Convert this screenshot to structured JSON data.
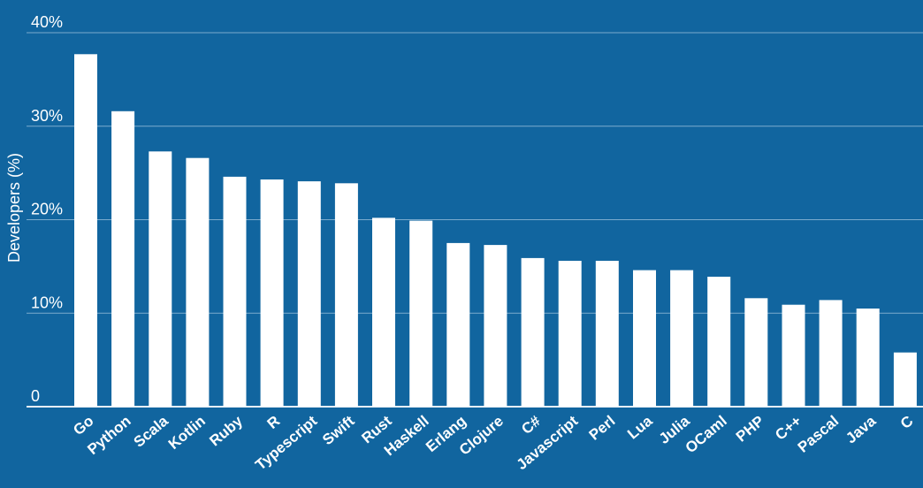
{
  "chart_data": {
    "type": "bar",
    "ylabel": "Developers (%)",
    "xlabel": "",
    "title": "",
    "ylim": [
      0,
      40
    ],
    "yticks": [
      {
        "value": 0,
        "label": "0"
      },
      {
        "value": 10,
        "label": "10%"
      },
      {
        "value": 20,
        "label": "20%"
      },
      {
        "value": 30,
        "label": "30%"
      },
      {
        "value": 40,
        "label": "40%"
      }
    ],
    "grid": true,
    "categories": [
      "Go",
      "Python",
      "Scala",
      "Kotlin",
      "Ruby",
      "R",
      "Typescript",
      "Swift",
      "Rust",
      "Haskell",
      "Erlang",
      "Clojure",
      "C#",
      "Javascript",
      "Perl",
      "Lua",
      "Julia",
      "OCaml",
      "PHP",
      "C++",
      "Pascal",
      "Java",
      "C"
    ],
    "values": [
      37.7,
      31.6,
      27.3,
      26.6,
      24.6,
      24.3,
      24.1,
      23.9,
      20.2,
      19.9,
      17.5,
      17.3,
      15.9,
      15.6,
      15.6,
      14.6,
      14.6,
      13.9,
      11.6,
      10.9,
      11.4,
      10.5,
      5.8
    ],
    "colors": {
      "background": "#11659f",
      "bar": "#ffffff",
      "grid": "#9fc3de",
      "text": "#ffffff"
    }
  }
}
